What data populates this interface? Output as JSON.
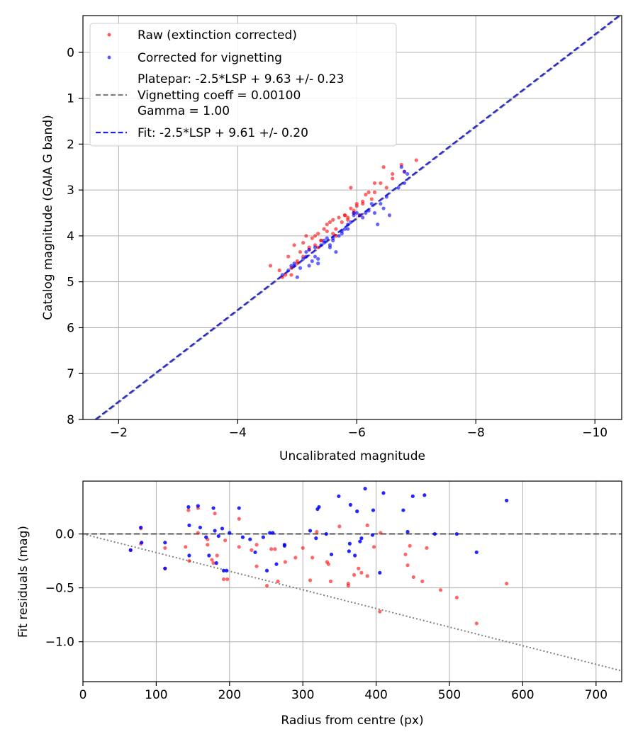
{
  "chart_data": [
    {
      "type": "scatter",
      "xlabel": "Uncalibrated magnitude",
      "ylabel": "Catalog magnitude (GAIA G band)",
      "xlim": [
        -1.4,
        -10.45
      ],
      "ylim": [
        8,
        -0.8
      ],
      "x_ticks": [
        -2,
        -4,
        -6,
        -8,
        -10
      ],
      "x_tick_labels": [
        "−2",
        "−4",
        "−6",
        "−8",
        "−10"
      ],
      "y_ticks": [
        0,
        1,
        2,
        3,
        4,
        5,
        6,
        7,
        8
      ],
      "y_tick_labels": [
        "0",
        "1",
        "2",
        "3",
        "4",
        "5",
        "6",
        "7",
        "8"
      ],
      "grid": true,
      "legend_position": "top-left",
      "legend": {
        "raw": "Raw (extinction corrected)",
        "corrected": "Corrected for vignetting",
        "platepar_lines": [
          "Platepar: -2.5*LSP + 9.63 +/- 0.23",
          "Vignetting coeff = 0.00100",
          "Gamma = 1.00"
        ],
        "fit": "Fit: -2.5*LSP + 9.61 +/- 0.20"
      },
      "colors": {
        "raw": "#ff0000",
        "corrected": "#0000ff",
        "platepar": "#7f7f7f",
        "fit": "#2020dd"
      },
      "lines": [
        {
          "name": "Platepar",
          "slope": 1.0,
          "intercept": 9.63,
          "style": "dashed"
        },
        {
          "name": "Fit",
          "slope": 1.0,
          "intercept": 9.61,
          "style": "dashed"
        }
      ],
      "series": [
        {
          "name": "Raw (extinction corrected)",
          "x": [
            -4.55,
            -4.7,
            -4.8,
            -4.9,
            -4.85,
            -4.95,
            -5.0,
            -5.05,
            -5.1,
            -5.15,
            -5.2,
            -5.25,
            -5.3,
            -5.35,
            -5.4,
            -5.45,
            -5.5,
            -5.55,
            -5.6,
            -5.65,
            -5.7,
            -5.75,
            -5.8,
            -5.85,
            -5.9,
            -5.95,
            -6.0,
            -6.05,
            -6.1,
            -6.15,
            -6.2,
            -6.3,
            -6.4,
            -6.45,
            -6.5,
            -6.6,
            -6.75,
            -6.8,
            -7.0,
            -4.9,
            -5.0,
            -5.1,
            -5.2,
            -5.3,
            -5.4,
            -5.5,
            -5.6,
            -5.8,
            -5.9,
            -6.0,
            -6.1,
            -6.3,
            -6.6,
            -5.85,
            -4.75,
            -5.35,
            -5.65,
            -5.95,
            -6.25
          ],
          "y": [
            4.65,
            4.75,
            4.85,
            4.7,
            4.45,
            4.2,
            4.55,
            4.35,
            4.15,
            4.0,
            4.3,
            4.05,
            4.2,
            3.95,
            4.1,
            3.85,
            3.75,
            3.7,
            3.95,
            3.85,
            3.6,
            3.7,
            3.55,
            3.65,
            2.95,
            3.45,
            3.3,
            3.55,
            3.3,
            3.1,
            3.05,
            2.85,
            2.85,
            2.5,
            2.95,
            2.65,
            2.45,
            2.6,
            2.35,
            4.85,
            4.6,
            4.45,
            4.25,
            4.0,
            4.1,
            3.9,
            3.65,
            3.55,
            3.4,
            3.35,
            3.25,
            3.05,
            2.75,
            3.6,
            4.9,
            4.25,
            4.0,
            3.5,
            3.2
          ]
        },
        {
          "name": "Corrected for vignetting",
          "x": [
            -4.75,
            -4.85,
            -4.9,
            -4.95,
            -5.05,
            -5.1,
            -5.15,
            -5.2,
            -5.25,
            -5.3,
            -5.35,
            -5.4,
            -5.45,
            -5.5,
            -5.55,
            -5.6,
            -5.7,
            -5.75,
            -5.8,
            -5.85,
            -5.9,
            -5.95,
            -6.0,
            -6.1,
            -6.2,
            -6.25,
            -6.3,
            -6.4,
            -6.5,
            -6.55,
            -6.7,
            -6.8,
            -6.85,
            -5.0,
            -5.2,
            -5.35,
            -5.45,
            -5.65,
            -5.75,
            -5.95,
            -6.15,
            -6.35,
            -6.75,
            -6.8,
            -5.3,
            -4.95,
            -5.55,
            -5.85,
            -6.05,
            -6.45,
            -5.15,
            -5.6
          ],
          "y": [
            4.85,
            4.75,
            4.65,
            4.6,
            4.7,
            4.5,
            4.45,
            4.3,
            4.55,
            4.25,
            4.5,
            4.2,
            4.15,
            4.05,
            4.25,
            4.1,
            4.0,
            3.95,
            3.85,
            3.75,
            3.7,
            3.55,
            3.5,
            3.6,
            3.45,
            3.3,
            3.5,
            3.3,
            3.15,
            3.55,
            2.95,
            2.85,
            2.65,
            4.9,
            4.65,
            4.6,
            4.1,
            4.35,
            3.9,
            3.5,
            3.5,
            3.75,
            2.5,
            2.6,
            4.45,
            4.65,
            4.2,
            3.85,
            3.55,
            3.4,
            4.35,
            4.05
          ]
        }
      ]
    },
    {
      "type": "scatter",
      "xlabel": "Radius from centre (px)",
      "ylabel": "Fit residuals (mag)",
      "xlim": [
        0,
        735
      ],
      "ylim": [
        -1.37,
        0.49
      ],
      "x_ticks": [
        0,
        100,
        200,
        300,
        400,
        500,
        600,
        700
      ],
      "x_tick_labels": [
        "0",
        "100",
        "200",
        "300",
        "400",
        "500",
        "600",
        "700"
      ],
      "y_ticks": [
        0.0,
        -0.5,
        -1.0
      ],
      "y_tick_labels": [
        "0.0",
        "−0.5",
        "−1.0"
      ],
      "grid": true,
      "lines": [
        {
          "name": "zero",
          "y": 0.0,
          "style": "dashed"
        },
        {
          "name": "vignetting model",
          "x": [
            0,
            735
          ],
          "y": [
            0.0,
            -1.27
          ],
          "style": "dotted"
        }
      ],
      "series": [
        {
          "name": "Raw",
          "x": [
            65,
            79,
            79,
            112,
            112,
            144,
            145,
            157,
            157,
            170,
            170,
            176,
            178,
            180,
            183,
            192,
            194,
            197,
            213,
            213,
            237,
            237,
            251,
            257,
            262,
            266,
            276,
            310,
            313,
            319,
            333,
            335,
            338,
            362,
            362,
            376,
            380,
            388,
            388,
            397,
            405,
            406,
            440,
            443,
            446,
            451,
            463,
            469,
            488,
            510,
            537,
            578,
            300,
            350,
            290,
            140,
            230,
            370
          ],
          "y": [
            -0.15,
            -0.09,
            0.05,
            -0.32,
            -0.13,
            0.22,
            -0.25,
            0.24,
            0.01,
            -0.05,
            -0.1,
            -0.24,
            -0.27,
            0.19,
            -0.2,
            -0.42,
            -0.06,
            -0.42,
            -0.12,
            0.14,
            -0.3,
            -0.1,
            -0.48,
            -0.14,
            -0.14,
            -0.44,
            -0.26,
            -0.43,
            -0.22,
            0.02,
            -0.26,
            -0.28,
            -0.44,
            -0.46,
            -0.48,
            -0.32,
            -0.36,
            0.08,
            -0.39,
            -0.12,
            -0.72,
            0.01,
            -0.19,
            -0.29,
            -0.11,
            -0.4,
            -0.44,
            -0.13,
            -0.52,
            -0.59,
            -0.83,
            -0.46,
            -0.13,
            0.07,
            -0.22,
            -0.12,
            -0.15,
            -0.38
          ]
        },
        {
          "name": "Corrected",
          "x": [
            65,
            79,
            80,
            112,
            112,
            144,
            145,
            157,
            160,
            168,
            172,
            178,
            180,
            182,
            190,
            192,
            196,
            200,
            213,
            218,
            228,
            235,
            246,
            251,
            259,
            264,
            275,
            310,
            320,
            322,
            332,
            339,
            349,
            363,
            364,
            365,
            371,
            374,
            378,
            385,
            396,
            405,
            410,
            437,
            443,
            450,
            466,
            480,
            510,
            537,
            578,
            380,
            275,
            145,
            185,
            255,
            318,
            395
          ],
          "y": [
            -0.15,
            0.06,
            -0.08,
            -0.32,
            -0.08,
            0.25,
            -0.2,
            0.26,
            0.06,
            -0.03,
            -0.2,
            0.24,
            0.03,
            -0.27,
            0.05,
            -0.34,
            -0.34,
            0.01,
            0.24,
            -0.03,
            -0.05,
            -0.17,
            -0.03,
            -0.34,
            0.01,
            -0.28,
            -0.1,
            0.03,
            0.23,
            0.25,
            0.0,
            -0.19,
            0.35,
            -0.16,
            -0.09,
            0.27,
            -0.2,
            0.21,
            -0.07,
            0.42,
            0.22,
            -0.36,
            0.38,
            0.22,
            0.02,
            0.35,
            0.36,
            0.0,
            0.0,
            -0.17,
            0.31,
            -0.04,
            -0.11,
            0.08,
            -0.02,
            0.01,
            -0.04,
            -0.01
          ]
        }
      ]
    }
  ]
}
